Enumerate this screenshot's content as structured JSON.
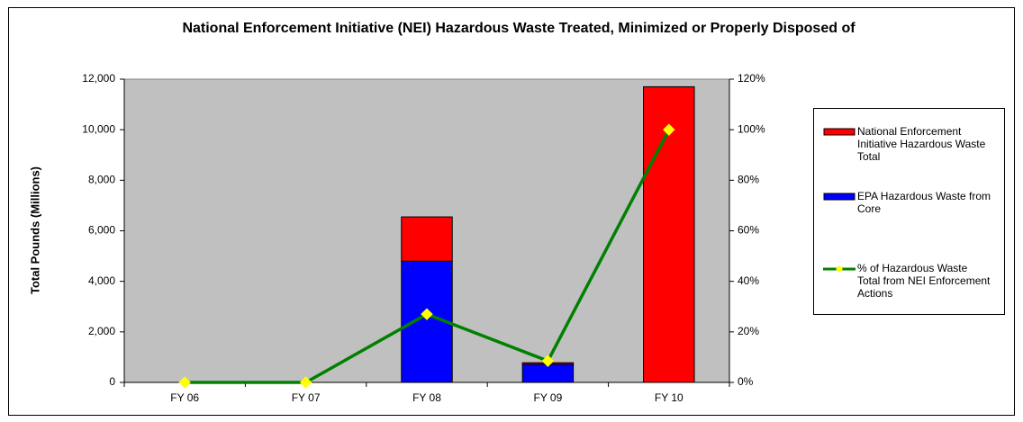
{
  "chart_data": {
    "type": "bar",
    "title": "National Enforcement Initiative (NEI) Hazardous Waste Treated, Minimized or Properly Disposed of",
    "y_label": "Total Pounds (Millions)",
    "categories": [
      "FY 06",
      "FY 07",
      "FY 08",
      "FY 09",
      "FY 10"
    ],
    "stacked": true,
    "grid": false,
    "legend": "right",
    "ylim": [
      0,
      12000
    ],
    "yticks": [
      0,
      {
        "value": 2000,
        "label": "2,000"
      },
      {
        "value": 4000,
        "label": "4,000"
      },
      {
        "value": 6000,
        "label": "6,000"
      },
      {
        "value": 8000,
        "label": "8,000"
      },
      {
        "value": 10000,
        "label": "10,000"
      },
      {
        "value": 12000,
        "label": "12,000"
      }
    ],
    "y2lim": [
      0,
      120
    ],
    "y2ticks": [
      {
        "value": 0,
        "label": "0%"
      },
      {
        "value": 20,
        "label": "20%"
      },
      {
        "value": 40,
        "label": "40%"
      },
      {
        "value": 60,
        "label": "60%"
      },
      {
        "value": 80,
        "label": "80%"
      },
      {
        "value": 100,
        "label": "100%"
      },
      {
        "value": 120,
        "label": "120%"
      }
    ],
    "series": [
      {
        "name": "National Enforcement Initiative Hazardous Waste Total",
        "type": "bar",
        "color": "#ff0000",
        "values": [
          0,
          0,
          1750,
          60,
          11700
        ]
      },
      {
        "name": "EPA Hazardous Waste from Core",
        "type": "bar",
        "color": "#0000ff",
        "values": [
          0,
          0,
          4800,
          720,
          0
        ]
      },
      {
        "name": "% of Hazardous Waste Total from NEI Enforcement Actions",
        "type": "line",
        "axis": "y2",
        "color": "#008000",
        "marker_color": "#ffff00",
        "values": [
          0,
          0,
          27,
          8.5,
          100
        ]
      }
    ]
  }
}
